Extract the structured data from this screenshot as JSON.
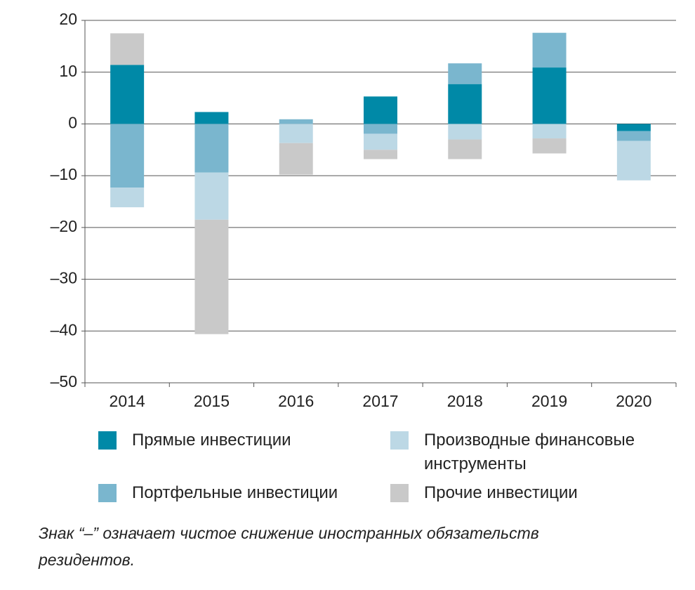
{
  "chart_data": {
    "type": "stacked-bar",
    "categories": [
      "2014",
      "2015",
      "2016",
      "2017",
      "2018",
      "2019",
      "2020"
    ],
    "series": [
      {
        "name": "Прямые инвестиции",
        "color": "#0089a7",
        "values": [
          11.4,
          2.3,
          0,
          5.3,
          7.7,
          10.9,
          -1.4
        ]
      },
      {
        "name": "Портфельные инвестиции",
        "color": "#7ab6ce",
        "values": [
          -12.3,
          -9.4,
          0.9,
          -1.9,
          4.0,
          6.7,
          -1.9
        ]
      },
      {
        "name": "Производные финансовые инструменты",
        "color": "#bcd8e5",
        "values": [
          -3.8,
          -9.1,
          -3.7,
          -3.1,
          -3.0,
          -2.8,
          -7.6
        ]
      },
      {
        "name": "Прочие инвестиции",
        "color": "#c9c9c9",
        "values": [
          6.1,
          -22.1,
          -6.1,
          -1.8,
          -3.8,
          -2.9,
          0
        ]
      }
    ],
    "ylim": [
      -50,
      20
    ],
    "yticks": [
      {
        "value": -50,
        "label": "–50"
      },
      {
        "value": -40,
        "label": "–40"
      },
      {
        "value": -30,
        "label": "–30"
      },
      {
        "value": -20,
        "label": "–20"
      },
      {
        "value": -10,
        "label": "–10"
      },
      0,
      10,
      20
    ],
    "grid": true,
    "note": "Знак “–” означает чистое снижение иностранных обязательств резидентов."
  }
}
